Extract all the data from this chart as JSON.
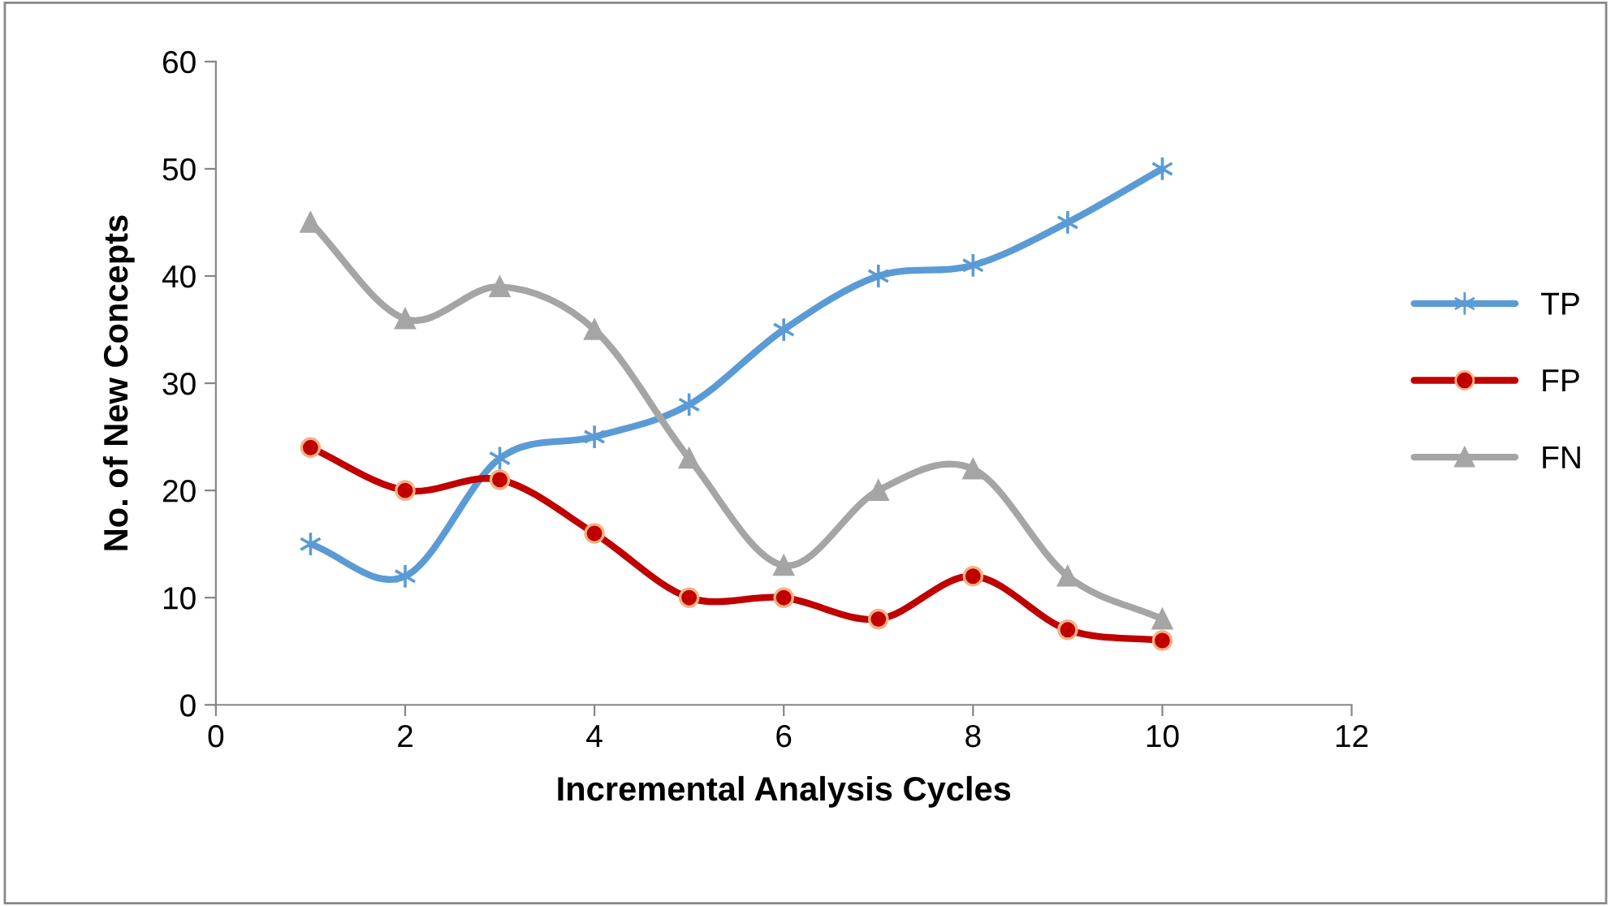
{
  "chart_data": {
    "type": "line",
    "xlabel": "Incremental Analysis Cycles",
    "ylabel": "No. of New Concepts",
    "x": [
      1,
      2,
      3,
      4,
      5,
      6,
      7,
      8,
      9,
      10
    ],
    "series": [
      {
        "name": "TP",
        "color": "#5b9bd5",
        "marker": "cross",
        "values": [
          15,
          12,
          23,
          25,
          28,
          35,
          40,
          41,
          45,
          50
        ]
      },
      {
        "name": "FP",
        "color": "#c00000",
        "marker": "circle",
        "values": [
          24,
          20,
          21,
          16,
          10,
          10,
          8,
          12,
          7,
          6
        ]
      },
      {
        "name": "FN",
        "color": "#a5a5a5",
        "marker": "triangle",
        "values": [
          45,
          36,
          39,
          35,
          23,
          13,
          20,
          22,
          12,
          8
        ]
      }
    ],
    "xlim": [
      0,
      12
    ],
    "xticks": [
      0,
      2,
      4,
      6,
      8,
      10,
      12
    ],
    "ylim": [
      0,
      60
    ],
    "yticks": [
      0,
      10,
      20,
      30,
      40,
      50,
      60
    ],
    "grid": false,
    "legend": "right",
    "line_style": "solid"
  }
}
